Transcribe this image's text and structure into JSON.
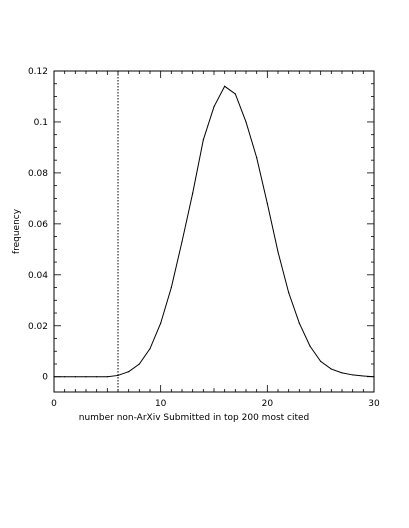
{
  "chart_data": {
    "type": "line",
    "xlabel": "number non-ArXiv Submitted in top 200 most cited",
    "ylabel": "frequency",
    "xlim": [
      0,
      30
    ],
    "ylim": [
      -0.006,
      0.12
    ],
    "x_ticks": [
      0,
      10,
      20,
      30
    ],
    "y_ticks": [
      0,
      0.02,
      0.04,
      0.06,
      0.08,
      0.1,
      0.12
    ],
    "x_tick_labels": [
      "0",
      "10",
      "20",
      "30"
    ],
    "y_tick_labels": [
      "0",
      "0.02",
      "0.04",
      "0.06",
      "0.08",
      "0.1",
      "0.12"
    ],
    "grid": false,
    "series": [
      {
        "x": [
          0,
          1,
          2,
          3,
          4,
          5,
          6,
          7,
          8,
          9,
          10,
          11,
          12,
          13,
          14,
          15,
          16,
          17,
          18,
          19,
          20,
          21,
          22,
          23,
          24,
          25,
          26,
          27,
          28,
          29,
          30
        ],
        "y": [
          0,
          0,
          0,
          0,
          0,
          0,
          0.0005,
          0.002,
          0.005,
          0.011,
          0.021,
          0.035,
          0.053,
          0.072,
          0.093,
          0.106,
          0.114,
          0.111,
          0.1,
          0.086,
          0.068,
          0.049,
          0.033,
          0.021,
          0.012,
          0.006,
          0.003,
          0.0015,
          0.0007,
          0.0003,
          0
        ]
      }
    ],
    "reference_line": {
      "x": 6,
      "style": "dotted"
    }
  }
}
